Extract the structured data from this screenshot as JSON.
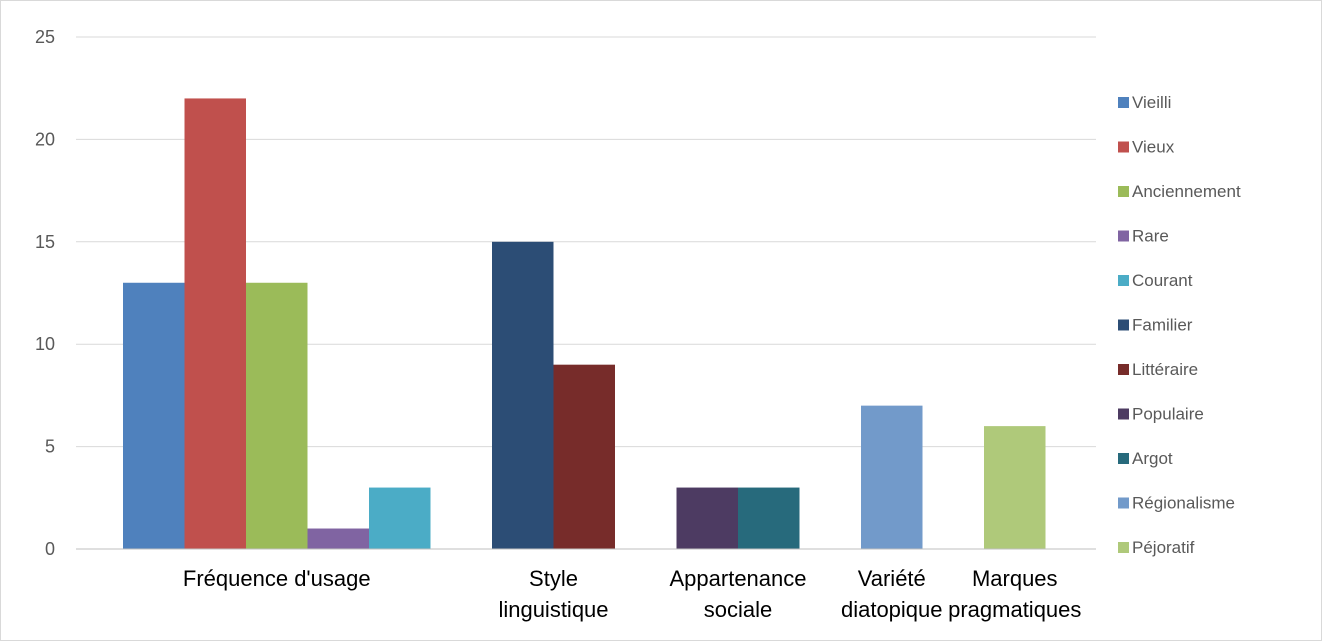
{
  "chart_data": {
    "type": "bar",
    "title": "",
    "xlabel": "",
    "ylabel": "",
    "ylim": [
      0,
      25
    ],
    "yticks": [
      0,
      5,
      10,
      15,
      20,
      25
    ],
    "grid": true,
    "legend_position": "right",
    "categories": [
      {
        "label": [
          "Fréquence d'usage"
        ],
        "bars": [
          {
            "series": "Vieilli",
            "value": 13
          },
          {
            "series": "Vieux",
            "value": 22
          },
          {
            "series": "Anciennement",
            "value": 13
          },
          {
            "series": "Rare",
            "value": 1
          },
          {
            "series": "Courant",
            "value": 3
          }
        ]
      },
      {
        "label": [
          "Style",
          "linguistique"
        ],
        "bars": [
          {
            "series": "Familier",
            "value": 15
          },
          {
            "series": "Littéraire",
            "value": 9
          }
        ]
      },
      {
        "label": [
          "Appartenance",
          "sociale"
        ],
        "bars": [
          {
            "series": "Populaire",
            "value": 3
          },
          {
            "series": "Argot",
            "value": 3
          }
        ]
      },
      {
        "label": [
          "Variété",
          "diatopique"
        ],
        "bars": [
          {
            "series": "Régionalisme",
            "value": 7
          }
        ]
      },
      {
        "label": [
          "Marques",
          "pragmatiques"
        ],
        "bars": [
          {
            "series": "Péjoratif",
            "value": 6
          }
        ]
      }
    ],
    "series": [
      {
        "name": "Vieilli",
        "color": "#4F81BD"
      },
      {
        "name": "Vieux",
        "color": "#C0504D"
      },
      {
        "name": "Anciennement",
        "color": "#9BBB59"
      },
      {
        "name": "Rare",
        "color": "#8064A2"
      },
      {
        "name": "Courant",
        "color": "#4BACC6"
      },
      {
        "name": "Familier",
        "color": "#2C4D75"
      },
      {
        "name": "Littéraire",
        "color": "#772C2A"
      },
      {
        "name": "Populaire",
        "color": "#4D3B62"
      },
      {
        "name": "Argot",
        "color": "#276A7C"
      },
      {
        "name": "Régionalisme",
        "color": "#729ACA"
      },
      {
        "name": "Péjoratif",
        "color": "#AFC97A"
      }
    ]
  }
}
